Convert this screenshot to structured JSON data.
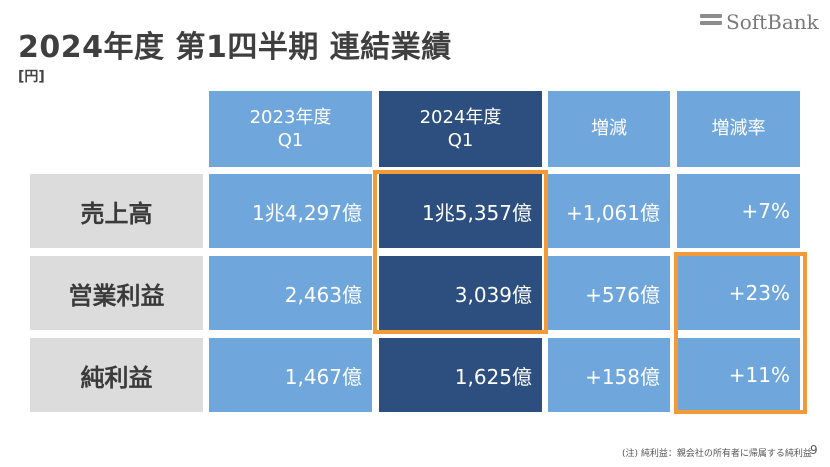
{
  "title": "2024年度 第1四半期 連結業績",
  "unit": "[円]",
  "brand": "SoftBank",
  "columns": [
    {
      "line1": "2023年度",
      "line2": "Q1"
    },
    {
      "line1": "2024年度",
      "line2": "Q1"
    },
    {
      "line1": "増減",
      "line2": ""
    },
    {
      "line1": "増減率",
      "line2": ""
    }
  ],
  "rows": [
    {
      "label": "売上高",
      "values": [
        "1兆4,297億",
        "1兆5,357億",
        "+1,061億",
        "+7%"
      ]
    },
    {
      "label": "営業利益",
      "values": [
        "2,463億",
        "3,039億",
        "+576億",
        "+23%"
      ]
    },
    {
      "label": "純利益",
      "values": [
        "1,467億",
        "1,625億",
        "+158億",
        "+11%"
      ]
    }
  ],
  "footnote": "(注) 純利益：親会社の所有者に帰属する純利益",
  "page_number": "9",
  "colors": {
    "header_blue": "#6fa6db",
    "highlight_dark": "#2d4f7f",
    "label_gray": "#dcdcdc",
    "highlight_border": "#f29a37"
  }
}
